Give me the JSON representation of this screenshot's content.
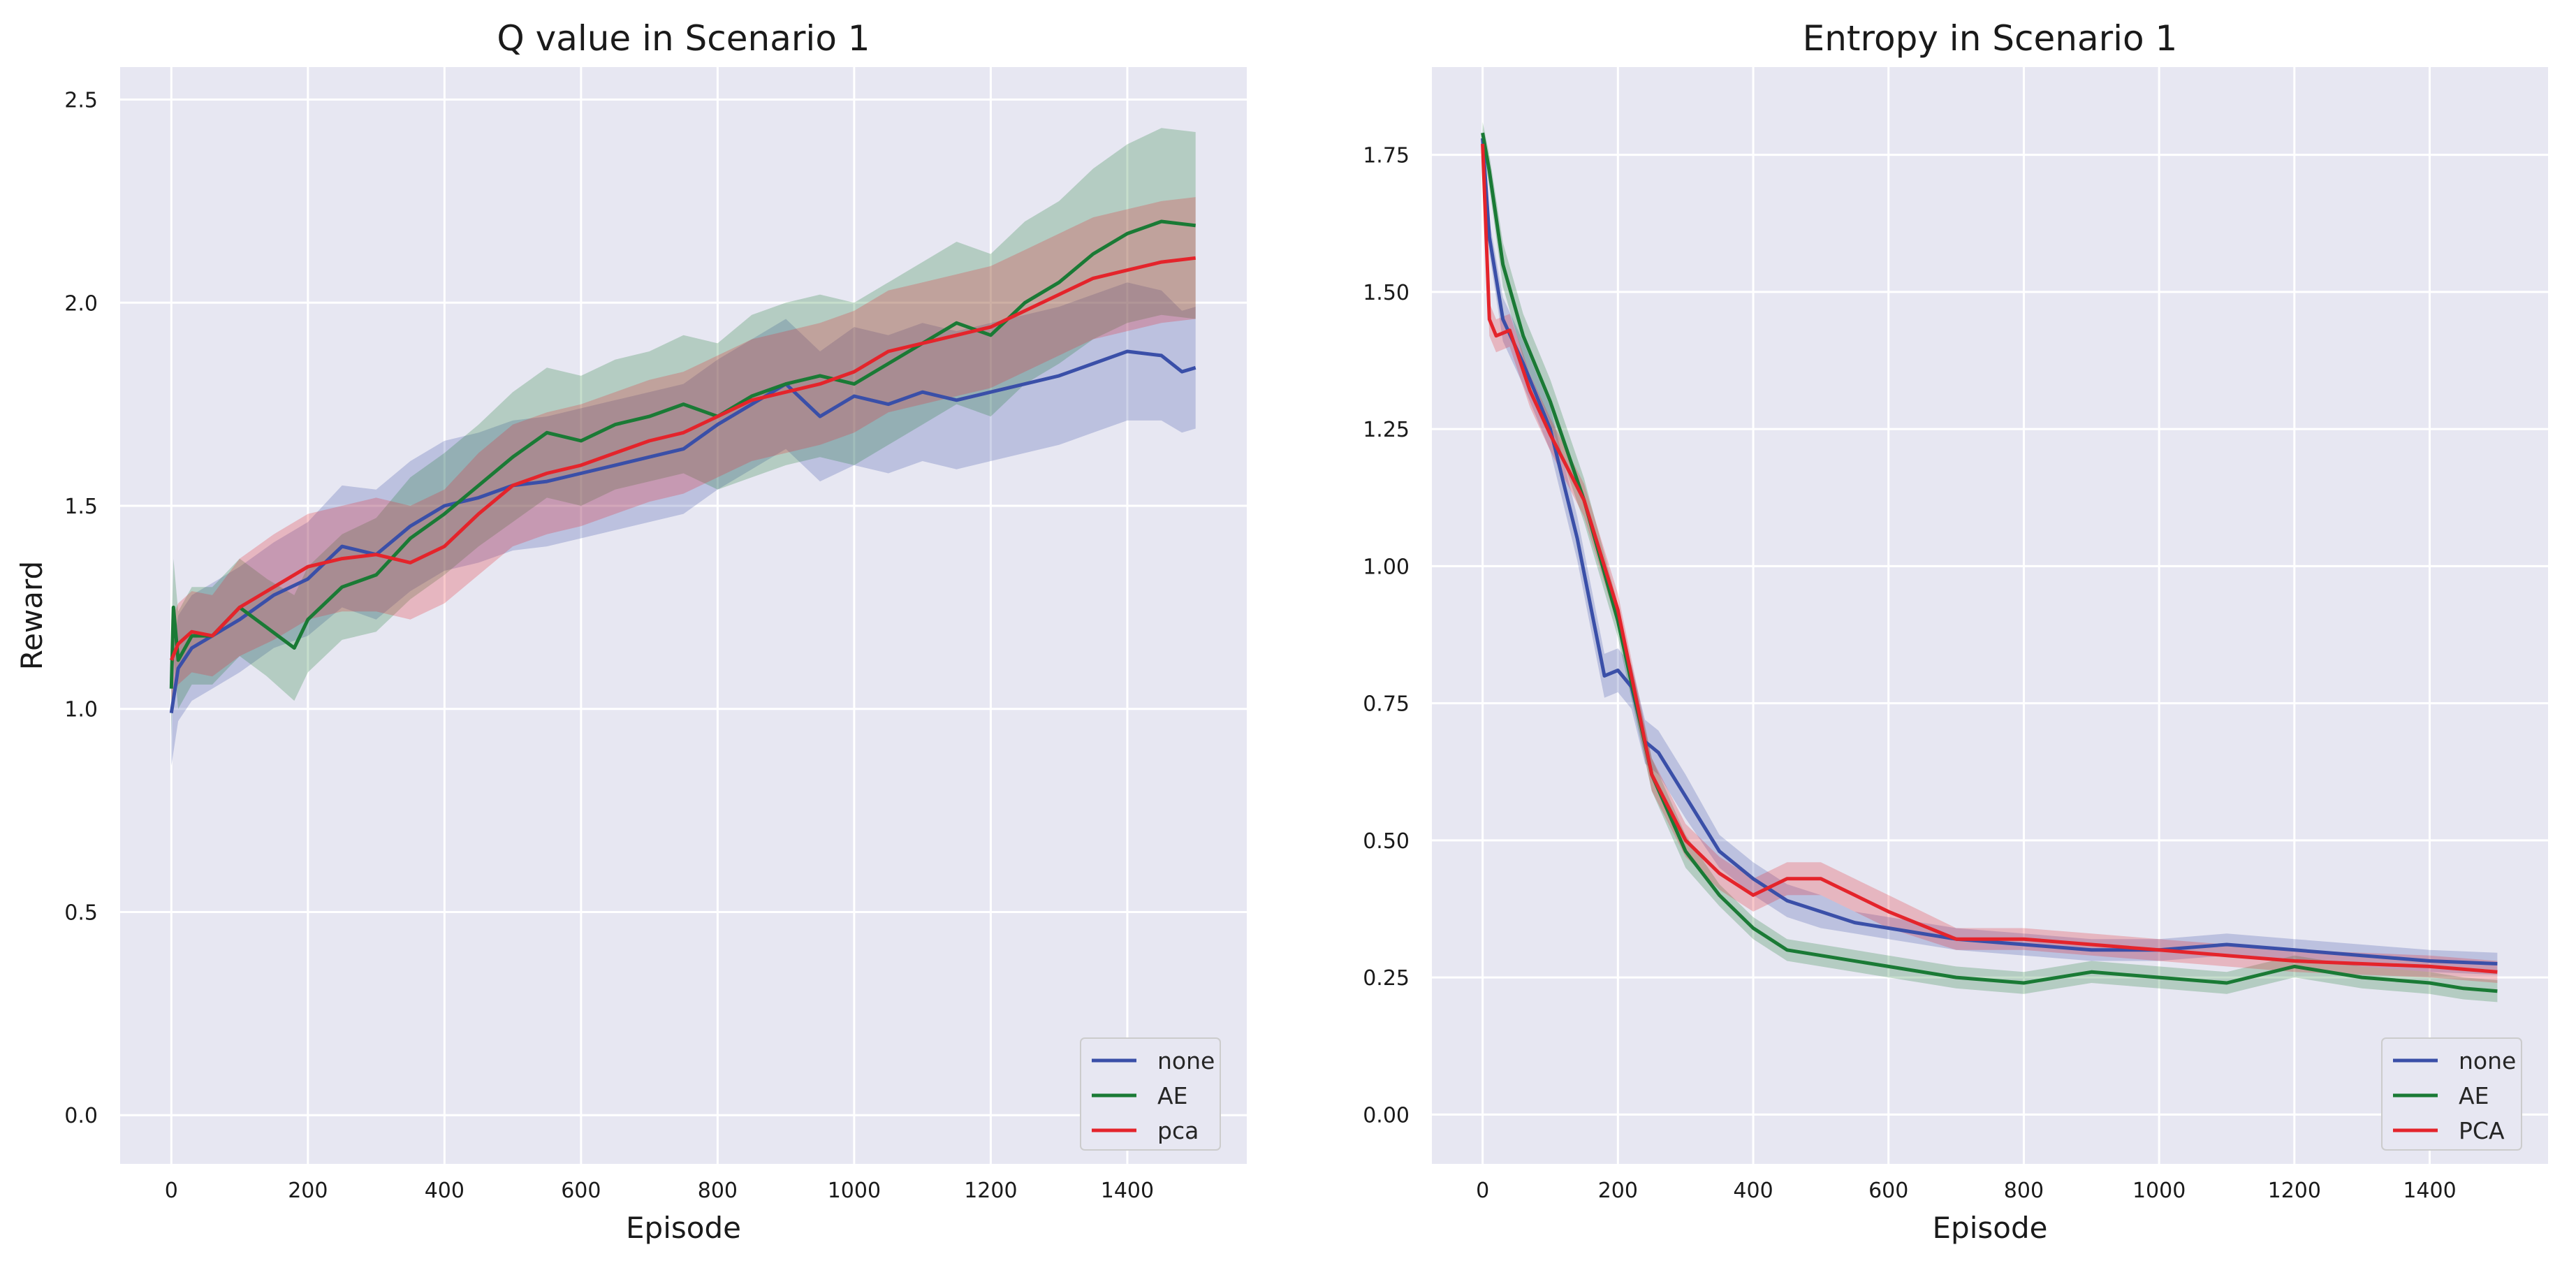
{
  "chart_data": [
    {
      "type": "line",
      "title": "Q value in Scenario 1",
      "xlabel": "Episode",
      "ylabel": "Reward",
      "xlim": [
        -75,
        1575
      ],
      "ylim": [
        -0.12,
        2.58
      ],
      "xticks": [
        0,
        200,
        400,
        600,
        800,
        1000,
        1200,
        1400
      ],
      "xtick_labels": [
        "0",
        "200",
        "400",
        "600",
        "800",
        "1000",
        "1200",
        "1400"
      ],
      "yticks": [
        0.0,
        0.5,
        1.0,
        1.5,
        2.0,
        2.5
      ],
      "ytick_labels": [
        "0.0",
        "0.5",
        "1.0",
        "1.5",
        "2.0",
        "2.5"
      ],
      "grid": true,
      "legend_position": "lower-right",
      "series": [
        {
          "name": "none",
          "color": "#3a4fa8",
          "x": [
            0,
            10,
            30,
            60,
            100,
            150,
            200,
            250,
            300,
            350,
            400,
            450,
            500,
            550,
            600,
            650,
            700,
            750,
            800,
            850,
            900,
            950,
            1000,
            1050,
            1100,
            1150,
            1200,
            1250,
            1300,
            1350,
            1400,
            1450,
            1480,
            1500
          ],
          "y": [
            0.99,
            1.1,
            1.15,
            1.18,
            1.22,
            1.28,
            1.32,
            1.4,
            1.38,
            1.45,
            1.5,
            1.52,
            1.55,
            1.56,
            1.58,
            1.6,
            1.62,
            1.64,
            1.7,
            1.75,
            1.8,
            1.72,
            1.77,
            1.75,
            1.78,
            1.76,
            1.78,
            1.8,
            1.82,
            1.85,
            1.88,
            1.87,
            1.83,
            1.84
          ],
          "band": [
            0.13,
            0.13,
            0.13,
            0.13,
            0.13,
            0.13,
            0.14,
            0.15,
            0.16,
            0.16,
            0.16,
            0.16,
            0.16,
            0.16,
            0.16,
            0.16,
            0.16,
            0.16,
            0.16,
            0.16,
            0.16,
            0.16,
            0.17,
            0.17,
            0.17,
            0.17,
            0.17,
            0.17,
            0.17,
            0.17,
            0.17,
            0.16,
            0.15,
            0.15
          ]
        },
        {
          "name": "AE",
          "color": "#1a7a35",
          "x": [
            0,
            3,
            10,
            30,
            60,
            100,
            140,
            180,
            200,
            250,
            300,
            350,
            400,
            450,
            500,
            550,
            600,
            650,
            700,
            750,
            800,
            850,
            900,
            950,
            1000,
            1050,
            1100,
            1150,
            1200,
            1250,
            1300,
            1350,
            1400,
            1450,
            1500
          ],
          "y": [
            1.05,
            1.25,
            1.12,
            1.18,
            1.18,
            1.25,
            1.2,
            1.15,
            1.22,
            1.3,
            1.33,
            1.42,
            1.48,
            1.55,
            1.62,
            1.68,
            1.66,
            1.7,
            1.72,
            1.75,
            1.72,
            1.77,
            1.8,
            1.82,
            1.8,
            1.85,
            1.9,
            1.95,
            1.92,
            2.0,
            2.05,
            2.12,
            2.17,
            2.2,
            2.19
          ],
          "band": [
            0.12,
            0.12,
            0.12,
            0.12,
            0.12,
            0.12,
            0.12,
            0.13,
            0.13,
            0.13,
            0.14,
            0.15,
            0.15,
            0.15,
            0.16,
            0.16,
            0.16,
            0.16,
            0.16,
            0.17,
            0.18,
            0.2,
            0.2,
            0.2,
            0.2,
            0.2,
            0.2,
            0.2,
            0.2,
            0.2,
            0.2,
            0.21,
            0.22,
            0.23,
            0.23
          ]
        },
        {
          "name": "pca",
          "color": "#e4242b",
          "x": [
            0,
            10,
            30,
            60,
            100,
            150,
            200,
            250,
            300,
            350,
            400,
            450,
            500,
            550,
            600,
            650,
            700,
            750,
            800,
            850,
            900,
            950,
            1000,
            1050,
            1100,
            1150,
            1200,
            1250,
            1300,
            1350,
            1400,
            1450,
            1500
          ],
          "y": [
            1.12,
            1.16,
            1.19,
            1.18,
            1.25,
            1.3,
            1.35,
            1.37,
            1.38,
            1.36,
            1.4,
            1.48,
            1.55,
            1.58,
            1.6,
            1.63,
            1.66,
            1.68,
            1.72,
            1.76,
            1.78,
            1.8,
            1.83,
            1.88,
            1.9,
            1.92,
            1.94,
            1.98,
            2.02,
            2.06,
            2.08,
            2.1,
            2.11
          ],
          "band": [
            0.1,
            0.1,
            0.1,
            0.1,
            0.12,
            0.13,
            0.13,
            0.13,
            0.14,
            0.14,
            0.14,
            0.15,
            0.15,
            0.15,
            0.15,
            0.15,
            0.15,
            0.15,
            0.15,
            0.15,
            0.15,
            0.15,
            0.15,
            0.15,
            0.15,
            0.15,
            0.15,
            0.15,
            0.15,
            0.15,
            0.15,
            0.15,
            0.15
          ]
        }
      ],
      "legend": [
        "none",
        "AE",
        "pca"
      ]
    },
    {
      "type": "line",
      "title": "Entropy in Scenario 1",
      "xlabel": "Episode",
      "ylabel": "",
      "xlim": [
        -75,
        1575
      ],
      "ylim": [
        -0.09,
        1.91
      ],
      "xticks": [
        0,
        200,
        400,
        600,
        800,
        1000,
        1200,
        1400
      ],
      "xtick_labels": [
        "0",
        "200",
        "400",
        "600",
        "800",
        "1000",
        "1200",
        "1400"
      ],
      "yticks": [
        0.0,
        0.25,
        0.5,
        0.75,
        1.0,
        1.25,
        1.5,
        1.75
      ],
      "ytick_labels": [
        "0.00",
        "0.25",
        "0.50",
        "0.75",
        "1.00",
        "1.25",
        "1.50",
        "1.75"
      ],
      "grid": true,
      "legend_position": "lower-right",
      "series": [
        {
          "name": "none",
          "color": "#3a4fa8",
          "x": [
            0,
            10,
            30,
            60,
            100,
            140,
            180,
            200,
            220,
            240,
            260,
            300,
            350,
            400,
            450,
            500,
            550,
            600,
            700,
            800,
            900,
            1000,
            1100,
            1200,
            1300,
            1400,
            1500
          ],
          "y": [
            1.78,
            1.6,
            1.45,
            1.37,
            1.25,
            1.05,
            0.8,
            0.81,
            0.78,
            0.68,
            0.66,
            0.58,
            0.48,
            0.43,
            0.39,
            0.37,
            0.35,
            0.34,
            0.32,
            0.31,
            0.3,
            0.3,
            0.31,
            0.3,
            0.29,
            0.28,
            0.275
          ],
          "band": [
            0.02,
            0.03,
            0.04,
            0.04,
            0.04,
            0.04,
            0.04,
            0.04,
            0.04,
            0.04,
            0.04,
            0.04,
            0.03,
            0.03,
            0.03,
            0.03,
            0.02,
            0.02,
            0.02,
            0.02,
            0.02,
            0.02,
            0.02,
            0.02,
            0.02,
            0.02,
            0.02
          ]
        },
        {
          "name": "AE",
          "color": "#1a7a35",
          "x": [
            0,
            10,
            30,
            60,
            100,
            150,
            200,
            250,
            300,
            350,
            400,
            450,
            500,
            600,
            700,
            800,
            900,
            1000,
            1100,
            1200,
            1300,
            1400,
            1450,
            1500
          ],
          "y": [
            1.79,
            1.72,
            1.55,
            1.42,
            1.3,
            1.12,
            0.9,
            0.62,
            0.48,
            0.4,
            0.34,
            0.3,
            0.29,
            0.27,
            0.25,
            0.24,
            0.26,
            0.25,
            0.24,
            0.27,
            0.25,
            0.24,
            0.23,
            0.225
          ],
          "band": [
            0.02,
            0.03,
            0.04,
            0.04,
            0.04,
            0.04,
            0.03,
            0.03,
            0.03,
            0.02,
            0.02,
            0.02,
            0.02,
            0.02,
            0.02,
            0.02,
            0.02,
            0.02,
            0.02,
            0.02,
            0.02,
            0.02,
            0.02,
            0.02
          ]
        },
        {
          "name": "PCA",
          "color": "#e4242b",
          "x": [
            0,
            10,
            20,
            40,
            70,
            100,
            150,
            200,
            250,
            300,
            350,
            400,
            450,
            500,
            550,
            600,
            700,
            800,
            900,
            1000,
            1100,
            1200,
            1300,
            1400,
            1500
          ],
          "y": [
            1.77,
            1.45,
            1.42,
            1.43,
            1.32,
            1.24,
            1.12,
            0.92,
            0.62,
            0.5,
            0.44,
            0.4,
            0.43,
            0.43,
            0.4,
            0.37,
            0.32,
            0.32,
            0.31,
            0.3,
            0.29,
            0.28,
            0.275,
            0.27,
            0.26
          ],
          "band": [
            0.02,
            0.03,
            0.03,
            0.03,
            0.03,
            0.03,
            0.03,
            0.03,
            0.03,
            0.03,
            0.03,
            0.03,
            0.03,
            0.03,
            0.03,
            0.03,
            0.02,
            0.02,
            0.02,
            0.02,
            0.02,
            0.02,
            0.02,
            0.02,
            0.02
          ]
        }
      ],
      "legend": [
        "none",
        "AE",
        "PCA"
      ]
    }
  ]
}
